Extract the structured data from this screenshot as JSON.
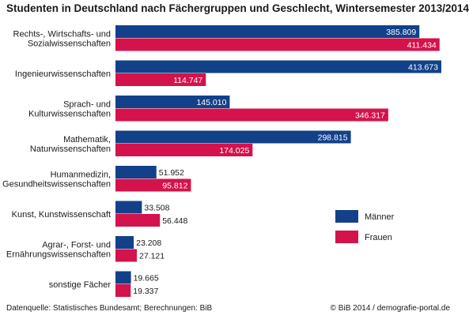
{
  "title": "Studenten in Deutschland nach Fächergruppen und Geschlecht, Wintersemester 2013/2014",
  "footer": {
    "source": "Datenquelle: Statistisches Bundesamt; Berechnungen: BiB",
    "credit": "© BiB 2014 / demografie-portal.de"
  },
  "chart_data": {
    "type": "bar",
    "orientation": "horizontal",
    "title": "Studenten in Deutschland nach Fächergruppen und Geschlecht, Wintersemester 2013/2014",
    "categories": [
      [
        "Rechts-, Wirtschafts- und",
        "Sozialwissenschaften"
      ],
      [
        "Ingenieurwissenschaften"
      ],
      [
        "Sprach- und",
        "Kulturwissenschaften"
      ],
      [
        "Mathematik,",
        "Naturwissenschaften"
      ],
      [
        "Humanmedizin,",
        "Gesundheitswissenschaften"
      ],
      [
        "Kunst, Kunstwissenschaft"
      ],
      [
        "Agrar-, Forst- und",
        "Ernährungswissenschaften"
      ],
      [
        "sonstige Fächer"
      ]
    ],
    "series": [
      {
        "name": "Männer",
        "color": "#12418a",
        "values": [
          385809,
          413673,
          145010,
          298815,
          51952,
          33508,
          23208,
          19665
        ],
        "labels": [
          "385.809",
          "413.673",
          "145.010",
          "298.815",
          "51.952",
          "33.508",
          "23.208",
          "19.665"
        ]
      },
      {
        "name": "Frauen",
        "color": "#d4124c",
        "values": [
          411434,
          114747,
          346317,
          174025,
          95812,
          56448,
          27121,
          19337
        ],
        "labels": [
          "411.434",
          "114.747",
          "346.317",
          "174.025",
          "95.812",
          "56.448",
          "27.121",
          "19.337"
        ]
      }
    ],
    "xlim": [
      0,
      413673
    ],
    "grid": false,
    "legend_position": "bottom-right"
  }
}
